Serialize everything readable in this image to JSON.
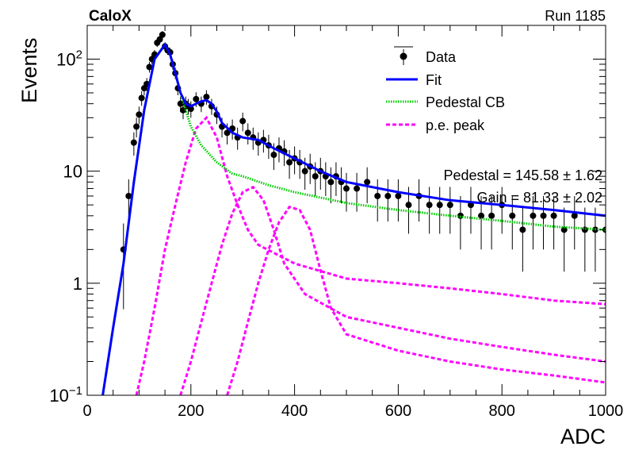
{
  "header": {
    "experiment": "CaloX",
    "run": "Run 1185"
  },
  "chart_data": {
    "type": "scatter",
    "xlabel": "ADC",
    "ylabel": "Events",
    "xlim": [
      0,
      1000
    ],
    "ylim": [
      0.1,
      200
    ],
    "yscale": "log",
    "x_ticks": [
      0,
      200,
      400,
      600,
      800,
      1000
    ],
    "y_ticks": [
      {
        "value": 0.1,
        "base": "10",
        "exp": "−1"
      },
      {
        "value": 1,
        "label": "1"
      },
      {
        "value": 10,
        "label": "10"
      },
      {
        "value": 100,
        "base": "10",
        "exp": "2"
      }
    ],
    "grid": false,
    "legend_position": "top-right",
    "legend": [
      {
        "label": "Data",
        "style": "marker",
        "color": "#000000"
      },
      {
        "label": "Fit",
        "style": "solid",
        "color": "#0000ff"
      },
      {
        "label": "Pedestal CB",
        "style": "dotted",
        "color": "#00cc00"
      },
      {
        "label": "p.e. peak",
        "style": "dashed",
        "color": "#ff00ff"
      }
    ],
    "annotations": [
      "Pedestal = 145.58 ± 1.62",
      "Gain = 81.33 ± 2.02"
    ],
    "data_points": {
      "x": [
        70,
        80,
        90,
        95,
        100,
        105,
        110,
        115,
        120,
        125,
        130,
        135,
        140,
        145,
        150,
        155,
        160,
        165,
        170,
        175,
        180,
        185,
        190,
        195,
        200,
        210,
        220,
        230,
        240,
        250,
        260,
        270,
        280,
        290,
        300,
        310,
        320,
        330,
        340,
        350,
        360,
        370,
        380,
        390,
        400,
        410,
        420,
        430,
        440,
        450,
        460,
        470,
        480,
        490,
        500,
        520,
        540,
        560,
        580,
        600,
        620,
        640,
        660,
        680,
        700,
        720,
        740,
        760,
        780,
        800,
        820,
        840,
        860,
        880,
        900,
        920,
        940,
        960,
        980,
        1000
      ],
      "y": [
        2,
        6,
        18,
        25,
        32,
        45,
        55,
        60,
        85,
        100,
        110,
        140,
        150,
        165,
        130,
        120,
        115,
        90,
        75,
        55,
        40,
        35,
        40,
        38,
        36,
        44,
        40,
        46,
        38,
        32,
        25,
        22,
        24,
        20,
        28,
        22,
        20,
        18,
        19,
        17,
        14,
        16,
        15,
        12,
        13,
        12,
        10,
        11,
        9,
        10,
        9,
        8,
        9,
        8,
        7,
        7,
        8,
        6,
        6,
        6,
        5,
        6,
        5,
        5,
        5,
        4,
        5,
        4,
        4,
        5,
        4,
        3,
        4,
        4,
        4,
        3,
        4,
        3,
        3,
        3
      ]
    },
    "fit": {
      "x": [
        30,
        50,
        70,
        90,
        110,
        130,
        150,
        160,
        170,
        180,
        190,
        200,
        210,
        220,
        230,
        240,
        250,
        260,
        280,
        300,
        330,
        360,
        400,
        450,
        500,
        600,
        700,
        800,
        900,
        1000
      ],
      "y": [
        0.1,
        0.4,
        1.5,
        8,
        35,
        100,
        135,
        110,
        75,
        50,
        40,
        38,
        40,
        42,
        43,
        40,
        34,
        27,
        22,
        20,
        19,
        16,
        13,
        10,
        8,
        6.5,
        5.5,
        5,
        4.5,
        4
      ]
    },
    "pedestal": {
      "x": [
        30,
        50,
        70,
        90,
        110,
        130,
        150,
        160,
        170,
        180,
        190,
        200,
        220,
        250,
        280,
        300,
        350,
        400,
        500,
        600,
        700,
        800,
        900,
        1000
      ],
      "y": [
        0.1,
        0.4,
        1.5,
        8,
        35,
        100,
        135,
        110,
        75,
        50,
        35,
        25,
        17,
        12,
        9.5,
        9,
        7.5,
        6.5,
        5.2,
        4.5,
        4,
        3.6,
        3.2,
        3
      ]
    },
    "pe_peaks": [
      {
        "x": [
          95,
          110,
          130,
          150,
          170,
          190,
          210,
          230,
          250,
          270,
          290,
          310,
          330,
          400,
          500,
          600,
          700,
          800,
          900,
          1000
        ],
        "y": [
          0.1,
          0.2,
          0.6,
          2,
          5,
          12,
          24,
          30,
          20,
          9,
          5,
          3,
          2.2,
          1.5,
          1.1,
          1,
          0.9,
          0.8,
          0.7,
          0.65
        ]
      },
      {
        "x": [
          180,
          200,
          220,
          240,
          260,
          280,
          300,
          320,
          340,
          360,
          380,
          420,
          500,
          600,
          700,
          800,
          900,
          1000
        ],
        "y": [
          0.1,
          0.2,
          0.45,
          1,
          2.2,
          4.2,
          6.5,
          7.2,
          5.5,
          3,
          1.5,
          0.8,
          0.5,
          0.4,
          0.32,
          0.27,
          0.23,
          0.2
        ]
      },
      {
        "x": [
          270,
          290,
          310,
          330,
          350,
          370,
          390,
          410,
          430,
          450,
          470,
          500,
          600,
          700,
          800,
          900,
          1000
        ],
        "y": [
          0.1,
          0.2,
          0.45,
          1,
          2,
          3.5,
          4.8,
          4.5,
          3,
          1.3,
          0.6,
          0.35,
          0.25,
          0.2,
          0.17,
          0.15,
          0.13
        ]
      }
    ]
  }
}
